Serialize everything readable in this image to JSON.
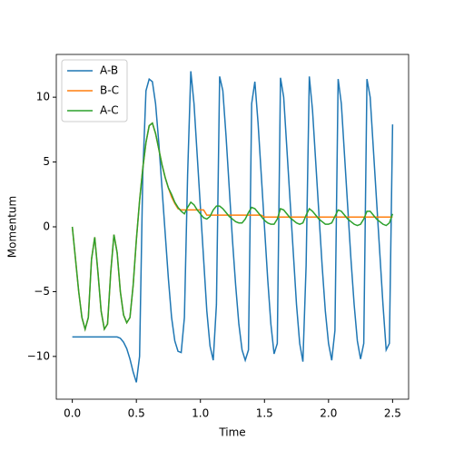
{
  "chart_data": {
    "type": "line",
    "xlabel": "Time",
    "ylabel": "Momentum",
    "x": [
      0,
      0.025,
      0.05,
      0.075,
      0.1,
      0.125,
      0.15,
      0.175,
      0.2,
      0.225,
      0.25,
      0.275,
      0.3,
      0.325,
      0.35,
      0.375,
      0.4,
      0.425,
      0.45,
      0.475,
      0.5,
      0.525,
      0.55,
      0.575,
      0.6,
      0.625,
      0.65,
      0.675,
      0.7,
      0.725,
      0.75,
      0.775,
      0.8,
      0.825,
      0.85,
      0.875,
      0.9,
      0.925,
      0.95,
      0.975,
      1,
      1.025,
      1.05,
      1.075,
      1.1,
      1.125,
      1.15,
      1.175,
      1.2,
      1.225,
      1.25,
      1.275,
      1.3,
      1.325,
      1.35,
      1.375,
      1.4,
      1.425,
      1.45,
      1.475,
      1.5,
      1.525,
      1.55,
      1.575,
      1.6,
      1.625,
      1.65,
      1.675,
      1.7,
      1.725,
      1.75,
      1.775,
      1.8,
      1.825,
      1.85,
      1.875,
      1.9,
      1.925,
      1.95,
      1.975,
      2,
      2.025,
      2.05,
      2.075,
      2.1,
      2.125,
      2.15,
      2.175,
      2.2,
      2.225,
      2.25,
      2.275,
      2.3,
      2.325,
      2.35,
      2.375,
      2.4,
      2.425,
      2.45,
      2.475,
      2.5
    ],
    "series": [
      {
        "name": "A-B",
        "color": "#1f77b4",
        "values": [
          -8.5,
          -8.5,
          -8.5,
          -8.5,
          -8.5,
          -8.5,
          -8.5,
          -8.5,
          -8.5,
          -8.5,
          -8.5,
          -8.5,
          -8.5,
          -8.5,
          -8.5,
          -8.6,
          -8.9,
          -9.4,
          -10.2,
          -11.2,
          -12.0,
          -10,
          4,
          10.5,
          11.4,
          11.2,
          9.5,
          6.5,
          3,
          -0.5,
          -4,
          -7,
          -8.8,
          -9.6,
          -9.7,
          -7,
          4,
          12.0,
          9.5,
          5.5,
          1.5,
          -2.5,
          -6.5,
          -9.2,
          -10.3,
          -6,
          11.6,
          10.5,
          7,
          3,
          -1,
          -4.5,
          -7.5,
          -9.5,
          -10.3,
          -9.5,
          9.5,
          11.2,
          8,
          4,
          0,
          -4,
          -7.5,
          -9.8,
          -9,
          11.5,
          10,
          6,
          2,
          -2,
          -6,
          -9,
          -10.4,
          -3,
          11.6,
          9,
          5,
          1,
          -3,
          -6.5,
          -9,
          -10.3,
          -8,
          11.4,
          9.5,
          5.5,
          1.5,
          -2.5,
          -6,
          -8.8,
          -10.2,
          -9,
          11.4,
          10,
          6,
          2,
          -2,
          -6,
          -9.5,
          -9,
          7.9
        ]
      },
      {
        "name": "B-C",
        "color": "#ff7f0e",
        "values": [
          0,
          -2.5,
          -5,
          -7,
          -7.9,
          -7,
          -2.5,
          -0.8,
          -3.5,
          -6.5,
          -7.9,
          -7.5,
          -3.5,
          -0.6,
          -2,
          -5,
          -6.8,
          -7.4,
          -7,
          -4.5,
          -1,
          2,
          4.5,
          6.5,
          7.8,
          8.0,
          7.2,
          6,
          4.8,
          3.8,
          3.0,
          2.3,
          1.8,
          1.4,
          1.3,
          1.3,
          1.3,
          1.3,
          1.3,
          1.3,
          1.3,
          1.3,
          0.9,
          0.9,
          0.9,
          0.9,
          0.9,
          0.9,
          0.9,
          0.9,
          0.9,
          0.9,
          0.9,
          0.9,
          0.9,
          0.9,
          0.9,
          0.9,
          0.9,
          0.9,
          0.75,
          0.75,
          0.75,
          0.75,
          0.75,
          0.75,
          0.75,
          0.75,
          0.75,
          0.75,
          0.75,
          0.75,
          0.75,
          0.75,
          0.75,
          0.75,
          0.75,
          0.75,
          0.75,
          0.75,
          0.75,
          0.75,
          0.75,
          0.75,
          0.75,
          0.75,
          0.75,
          0.75,
          0.75,
          0.75,
          0.75,
          0.75,
          0.75,
          0.75,
          0.75,
          0.75,
          0.75,
          0.75,
          0.75,
          0.75,
          0.75
        ]
      },
      {
        "name": "A-C",
        "color": "#2ca02c",
        "values": [
          0,
          -2.5,
          -5,
          -7,
          -7.9,
          -7,
          -2.5,
          -0.8,
          -3.5,
          -6.5,
          -7.9,
          -7.5,
          -3.5,
          -0.6,
          -2,
          -5,
          -6.8,
          -7.4,
          -7,
          -4.5,
          -1,
          2,
          4.5,
          6.5,
          7.8,
          8.0,
          7.2,
          6,
          4.8,
          3.8,
          3.0,
          2.5,
          1.9,
          1.5,
          1.2,
          1.0,
          1.5,
          1.9,
          1.7,
          1.3,
          1.0,
          0.7,
          0.6,
          0.8,
          1.3,
          1.6,
          1.6,
          1.4,
          1.1,
          0.8,
          0.6,
          0.4,
          0.3,
          0.3,
          0.6,
          1.1,
          1.5,
          1.4,
          1.1,
          0.8,
          0.5,
          0.3,
          0.2,
          0.2,
          0.6,
          1.4,
          1.3,
          1.0,
          0.7,
          0.5,
          0.3,
          0.2,
          0.3,
          0.9,
          1.4,
          1.2,
          0.9,
          0.6,
          0.4,
          0.2,
          0.2,
          0.3,
          0.8,
          1.3,
          1.2,
          0.9,
          0.6,
          0.4,
          0.2,
          0.1,
          0.2,
          0.6,
          1.2,
          1.2,
          0.9,
          0.6,
          0.4,
          0.2,
          0.1,
          0.3,
          1.0
        ]
      }
    ],
    "xlim": [
      -0.125,
      2.625
    ],
    "xticks": [
      {
        "value": 0,
        "label": "0.0"
      },
      0.5,
      {
        "value": 1,
        "label": "1.0"
      },
      1.5,
      {
        "value": 2,
        "label": "2.0"
      },
      2.5
    ],
    "ylim": [
      -13.3,
      13.3
    ],
    "yticks": [
      {
        "value": -10,
        "label": "−10"
      },
      {
        "value": -5,
        "label": "−5"
      },
      0,
      5,
      10
    ],
    "legend": "upper left",
    "grid": false
  }
}
